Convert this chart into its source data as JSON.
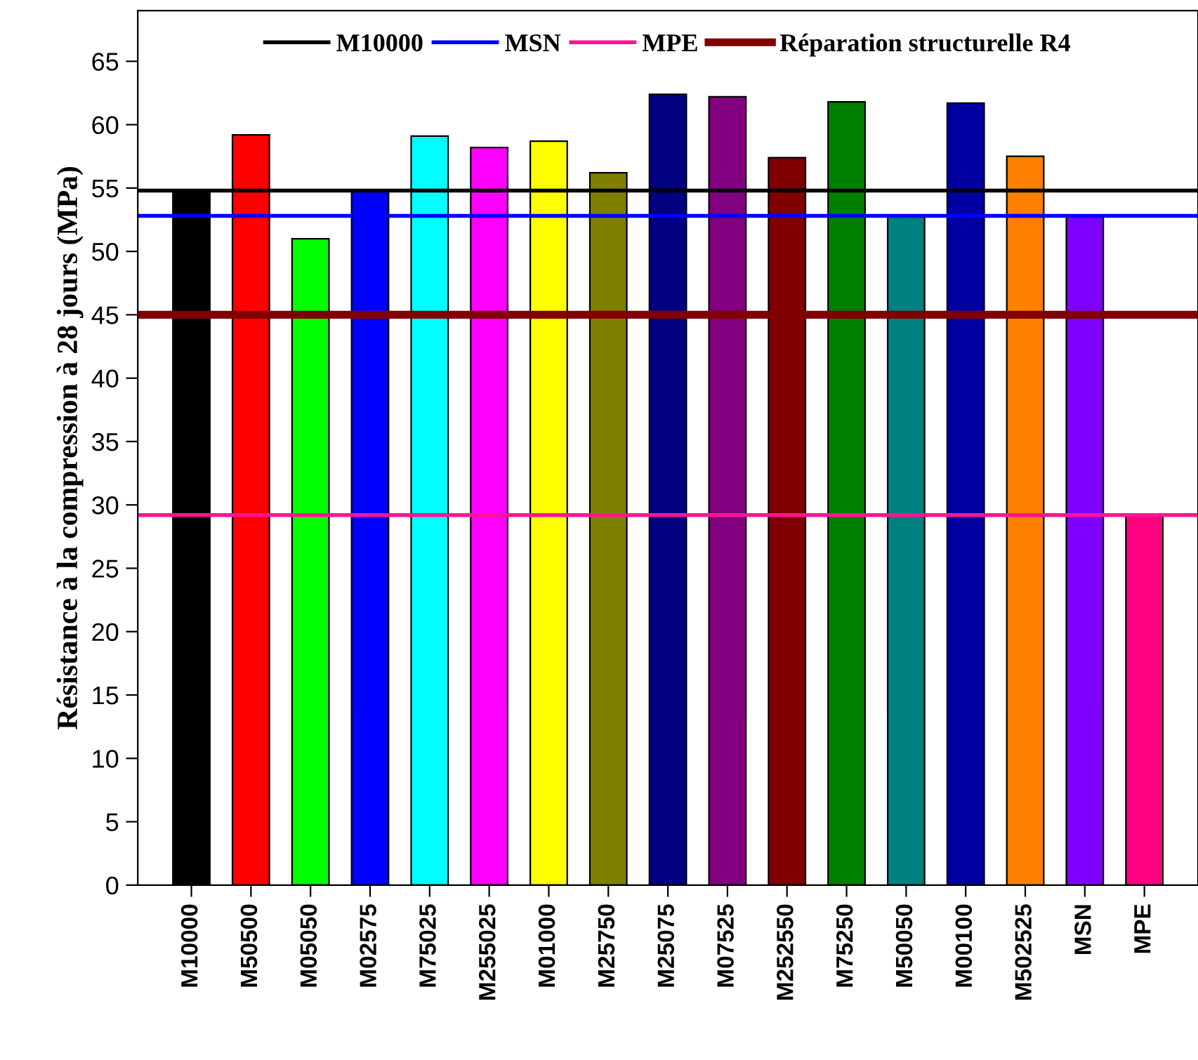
{
  "chart_data": {
    "type": "bar",
    "ylabel": "Résistance à la compression à 28 jours (MPa)",
    "categories": [
      "M10000",
      "M50500",
      "M05050",
      "M02575",
      "M75025",
      "M255025",
      "M01000",
      "M25750",
      "M25075",
      "M07525",
      "M252550",
      "M75250",
      "M50050",
      "M00100",
      "M502525",
      "MSN",
      "MPE"
    ],
    "values": [
      54.8,
      59.2,
      51.0,
      54.8,
      59.1,
      58.2,
      58.7,
      56.2,
      62.4,
      62.2,
      57.4,
      61.8,
      52.8,
      61.7,
      57.5,
      52.8,
      29.2
    ],
    "colors": [
      "#000000",
      "#ff0000",
      "#00ff00",
      "#0000ff",
      "#00ffff",
      "#ff00ff",
      "#ffff00",
      "#808000",
      "#000080",
      "#800080",
      "#800000",
      "#008000",
      "#008080",
      "#0000a0",
      "#ff8000",
      "#8000ff",
      "#ff0080"
    ],
    "ylim": [
      0,
      69
    ],
    "yticks": [
      0,
      5,
      10,
      15,
      20,
      25,
      30,
      35,
      40,
      45,
      50,
      55,
      60,
      65
    ],
    "ref_lines": [
      {
        "axis": "y",
        "value": 54.8,
        "label": "M10000",
        "color": "#000000"
      },
      {
        "axis": "y",
        "value": 52.8,
        "label": "MSN",
        "color": "#0000ff"
      },
      {
        "axis": "y",
        "value": 29.2,
        "label": "MPE",
        "color": "#ff1493"
      },
      {
        "axis": "y",
        "value": 45,
        "label": "Réparation structurelle R4",
        "color": "#800000"
      }
    ],
    "legend": "top",
    "grid": false
  }
}
